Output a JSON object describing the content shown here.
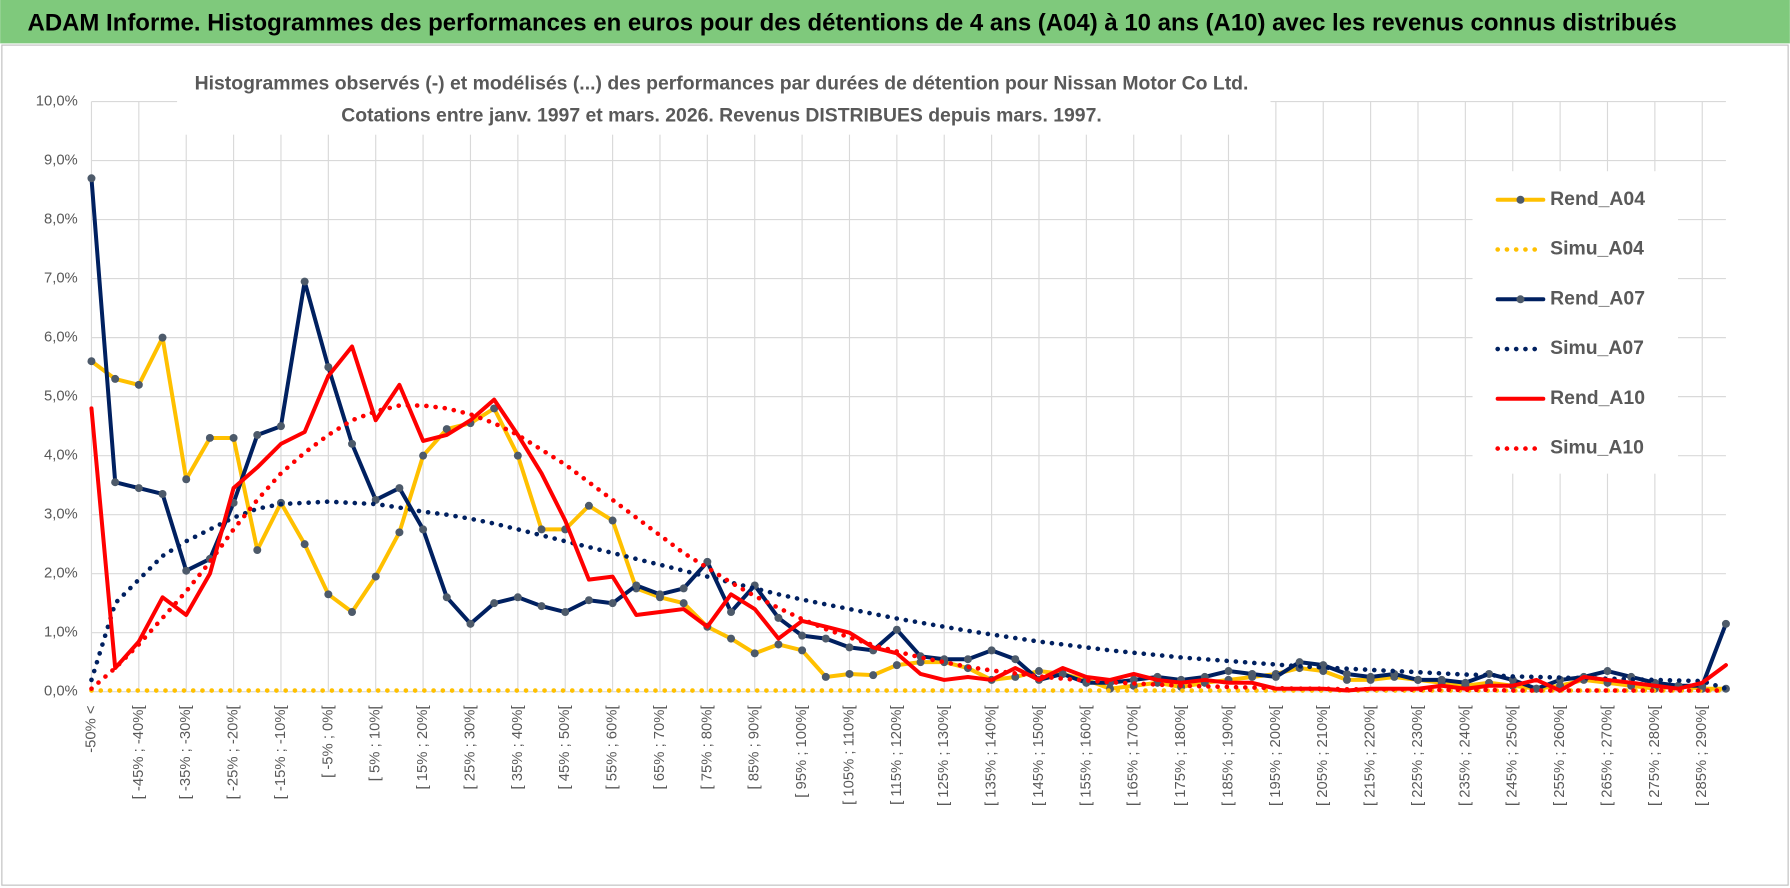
{
  "header": {
    "title": "ADAM Informe. Histogrammes des performances en euros pour des détentions de 4 ans (A04) à 10 ans (A10) avec les revenus connus distribués"
  },
  "chart_data": {
    "type": "line",
    "title": "Histogrammes observés (-) et modélisés (...) des performances par durées de détention pour Nissan Motor Co Ltd.",
    "subtitle": "Cotations entre janv. 1997 et mars. 2026.  Revenus DISTRIBUES depuis mars. 1997.",
    "categories": [
      "-50% <",
      null,
      "[ -45% ; -40%[",
      null,
      "[ -35% ; -30%[",
      null,
      "[ -25% ; -20%[",
      null,
      "[ -15% ; -10%[",
      null,
      "[ -5% ; 0%[",
      null,
      "[ 5% ; 10%[",
      null,
      "[ 15% ; 20%[",
      null,
      "[ 25% ; 30%[",
      null,
      "[ 35% ; 40%[",
      null,
      "[ 45% ; 50%[",
      null,
      "[ 55% ; 60%[",
      null,
      "[ 65% ; 70%[",
      null,
      "[ 75% ; 80%[",
      null,
      "[ 85% ; 90%[",
      null,
      "[ 95% ; 100%[",
      null,
      "[ 105% ; 110%[",
      null,
      "[ 115% ; 120%[",
      null,
      "[ 125% ; 130%[",
      null,
      "[ 135% ; 140%[",
      null,
      "[ 145% ; 150%[",
      null,
      "[ 155% ; 160%[",
      null,
      "[ 165% ; 170%[",
      null,
      "[ 175% ; 180%[",
      null,
      "[ 185% ; 190%[",
      null,
      "[ 195% ; 200%[",
      null,
      "[ 205% ; 210%[",
      null,
      "[ 215% ; 220%[",
      null,
      "[ 225% ; 230%[",
      null,
      "[ 235% ; 240%[",
      null,
      "[ 245% ; 250%[",
      null,
      "[ 255% ; 260%[",
      null,
      "[ 265% ; 270%[",
      null,
      "[ 275% ; 280%[",
      null,
      "[ 285% ; 290%[",
      null
    ],
    "series": [
      {
        "name": "Rend_A04",
        "color": "#ffc000",
        "dash": "solid",
        "markers": true,
        "values": [
          5.6,
          5.3,
          5.2,
          6.0,
          3.6,
          4.3,
          4.3,
          2.4,
          3.2,
          2.5,
          1.65,
          1.35,
          1.95,
          2.7,
          4.0,
          4.45,
          4.55,
          4.8,
          4.0,
          2.75,
          2.75,
          3.15,
          2.9,
          1.75,
          1.6,
          1.5,
          1.1,
          0.9,
          0.65,
          0.8,
          0.7,
          0.25,
          0.3,
          0.28,
          0.45,
          0.5,
          0.5,
          0.4,
          0.2,
          0.25,
          0.35,
          0.3,
          0.2,
          0.05,
          0.1,
          0.15,
          0.08,
          0.15,
          0.2,
          0.25,
          0.3,
          0.4,
          0.35,
          0.2,
          0.2,
          0.25,
          0.2,
          0.15,
          0.1,
          0.15,
          0.1,
          0.05,
          0.1,
          0.2,
          0.15,
          0.1,
          0.05,
          0.1,
          0.05,
          0.05
        ]
      },
      {
        "name": "Simu_A04",
        "color": "#ffc000",
        "dash": "dot",
        "markers": false,
        "values": [
          0.02,
          0.02,
          0.02,
          0.02,
          0.02,
          0.02,
          0.02,
          0.02,
          0.02,
          0.02,
          0.02,
          0.02,
          0.02,
          0.02,
          0.02,
          0.02,
          0.02,
          0.02,
          0.02,
          0.02,
          0.02,
          0.02,
          0.02,
          0.02,
          0.02,
          0.02,
          0.02,
          0.02,
          0.02,
          0.02,
          0.02,
          0.02,
          0.02,
          0.02,
          0.02,
          0.02,
          0.02,
          0.02,
          0.02,
          0.02,
          0.02,
          0.02,
          0.02,
          0.02,
          0.02,
          0.02,
          0.02,
          0.02,
          0.02,
          0.02,
          0.02,
          0.02,
          0.02,
          0.02,
          0.02,
          0.02,
          0.02,
          0.02,
          0.02,
          0.02,
          0.02,
          0.02,
          0.02,
          0.02,
          0.02,
          0.02,
          0.02,
          0.02,
          0.02,
          0.02
        ]
      },
      {
        "name": "Rend_A07",
        "color": "#002060",
        "dash": "solid",
        "markers": true,
        "values": [
          8.7,
          3.55,
          3.45,
          3.35,
          2.05,
          2.25,
          3.2,
          4.35,
          4.5,
          6.95,
          5.5,
          4.2,
          3.25,
          3.45,
          2.75,
          1.6,
          1.15,
          1.5,
          1.6,
          1.45,
          1.35,
          1.55,
          1.5,
          1.8,
          1.65,
          1.75,
          2.2,
          1.35,
          1.8,
          1.25,
          0.95,
          0.9,
          0.75,
          0.7,
          1.05,
          0.6,
          0.55,
          0.55,
          0.7,
          0.55,
          0.2,
          0.3,
          0.15,
          0.15,
          0.2,
          0.25,
          0.2,
          0.25,
          0.35,
          0.3,
          0.25,
          0.5,
          0.45,
          0.3,
          0.25,
          0.3,
          0.2,
          0.2,
          0.15,
          0.3,
          0.2,
          0.05,
          0.2,
          0.25,
          0.35,
          0.25,
          0.15,
          0.1,
          0.1,
          1.15
        ]
      },
      {
        "name": "Simu_A07",
        "color": "#002060",
        "dash": "dot",
        "markers": false,
        "values": [
          0.2,
          1.5,
          1.9,
          2.3,
          2.55,
          2.75,
          2.95,
          3.1,
          3.18,
          3.2,
          3.22,
          3.2,
          3.18,
          3.12,
          3.05,
          3.0,
          2.93,
          2.85,
          2.75,
          2.65,
          2.55,
          2.45,
          2.35,
          2.25,
          2.15,
          2.05,
          1.95,
          1.85,
          1.75,
          1.65,
          1.56,
          1.48,
          1.4,
          1.32,
          1.24,
          1.17,
          1.1,
          1.03,
          0.97,
          0.91,
          0.85,
          0.8,
          0.75,
          0.7,
          0.66,
          0.62,
          0.58,
          0.55,
          0.52,
          0.49,
          0.46,
          0.43,
          0.41,
          0.39,
          0.37,
          0.35,
          0.33,
          0.31,
          0.29,
          0.28,
          0.26,
          0.25,
          0.24,
          0.23,
          0.22,
          0.21,
          0.2,
          0.19,
          0.18,
          0.05
        ]
      },
      {
        "name": "Rend_A10",
        "color": "#ff0000",
        "dash": "solid",
        "markers": false,
        "values": [
          4.8,
          0.4,
          0.85,
          1.6,
          1.3,
          2.0,
          3.45,
          3.8,
          4.2,
          4.4,
          5.35,
          5.85,
          4.6,
          5.2,
          4.25,
          4.35,
          4.6,
          4.95,
          4.35,
          3.7,
          2.9,
          1.9,
          1.95,
          1.3,
          1.35,
          1.4,
          1.1,
          1.65,
          1.4,
          0.9,
          1.2,
          1.1,
          1.0,
          0.75,
          0.65,
          0.3,
          0.2,
          0.25,
          0.2,
          0.4,
          0.2,
          0.4,
          0.25,
          0.2,
          0.3,
          0.2,
          0.15,
          0.2,
          0.15,
          0.15,
          0.05,
          0.05,
          0.05,
          0.02,
          0.05,
          0.05,
          0.05,
          0.1,
          0.05,
          0.1,
          0.1,
          0.2,
          0.02,
          0.25,
          0.2,
          0.15,
          0.1,
          0.05,
          0.15,
          0.45
        ]
      },
      {
        "name": "Simu_A10",
        "color": "#ff0000",
        "dash": "dot",
        "markers": false,
        "values": [
          0.05,
          0.4,
          0.8,
          1.25,
          1.7,
          2.2,
          2.75,
          3.25,
          3.7,
          4.05,
          4.35,
          4.6,
          4.75,
          4.85,
          4.85,
          4.8,
          4.7,
          4.55,
          4.35,
          4.1,
          3.85,
          3.55,
          3.25,
          2.95,
          2.65,
          2.35,
          2.1,
          1.85,
          1.62,
          1.42,
          1.23,
          1.06,
          0.92,
          0.79,
          0.68,
          0.58,
          0.5,
          0.42,
          0.36,
          0.31,
          0.26,
          0.22,
          0.19,
          0.16,
          0.14,
          0.12,
          0.1,
          0.09,
          0.08,
          0.07,
          0.06,
          0.05,
          0.05,
          0.04,
          0.04,
          0.04,
          0.03,
          0.03,
          0.03,
          0.03,
          0.02,
          0.02,
          0.02,
          0.02,
          0.02,
          0.02,
          0.02,
          0.02,
          0.02,
          0.02
        ]
      }
    ],
    "ylim": [
      0,
      10
    ],
    "yticks": [
      {
        "value": 0,
        "label": "0,0%"
      },
      {
        "value": 1,
        "label": "1,0%"
      },
      {
        "value": 2,
        "label": "2,0%"
      },
      {
        "value": 3,
        "label": "3,0%"
      },
      {
        "value": 4,
        "label": "4,0%"
      },
      {
        "value": 5,
        "label": "5,0%"
      },
      {
        "value": 6,
        "label": "6,0%"
      },
      {
        "value": 7,
        "label": "7,0%"
      },
      {
        "value": 8,
        "label": "8,0%"
      },
      {
        "value": 9,
        "label": "9,0%"
      },
      {
        "value": 10,
        "label": "10,0%"
      }
    ],
    "grid": true,
    "legend": "right"
  }
}
